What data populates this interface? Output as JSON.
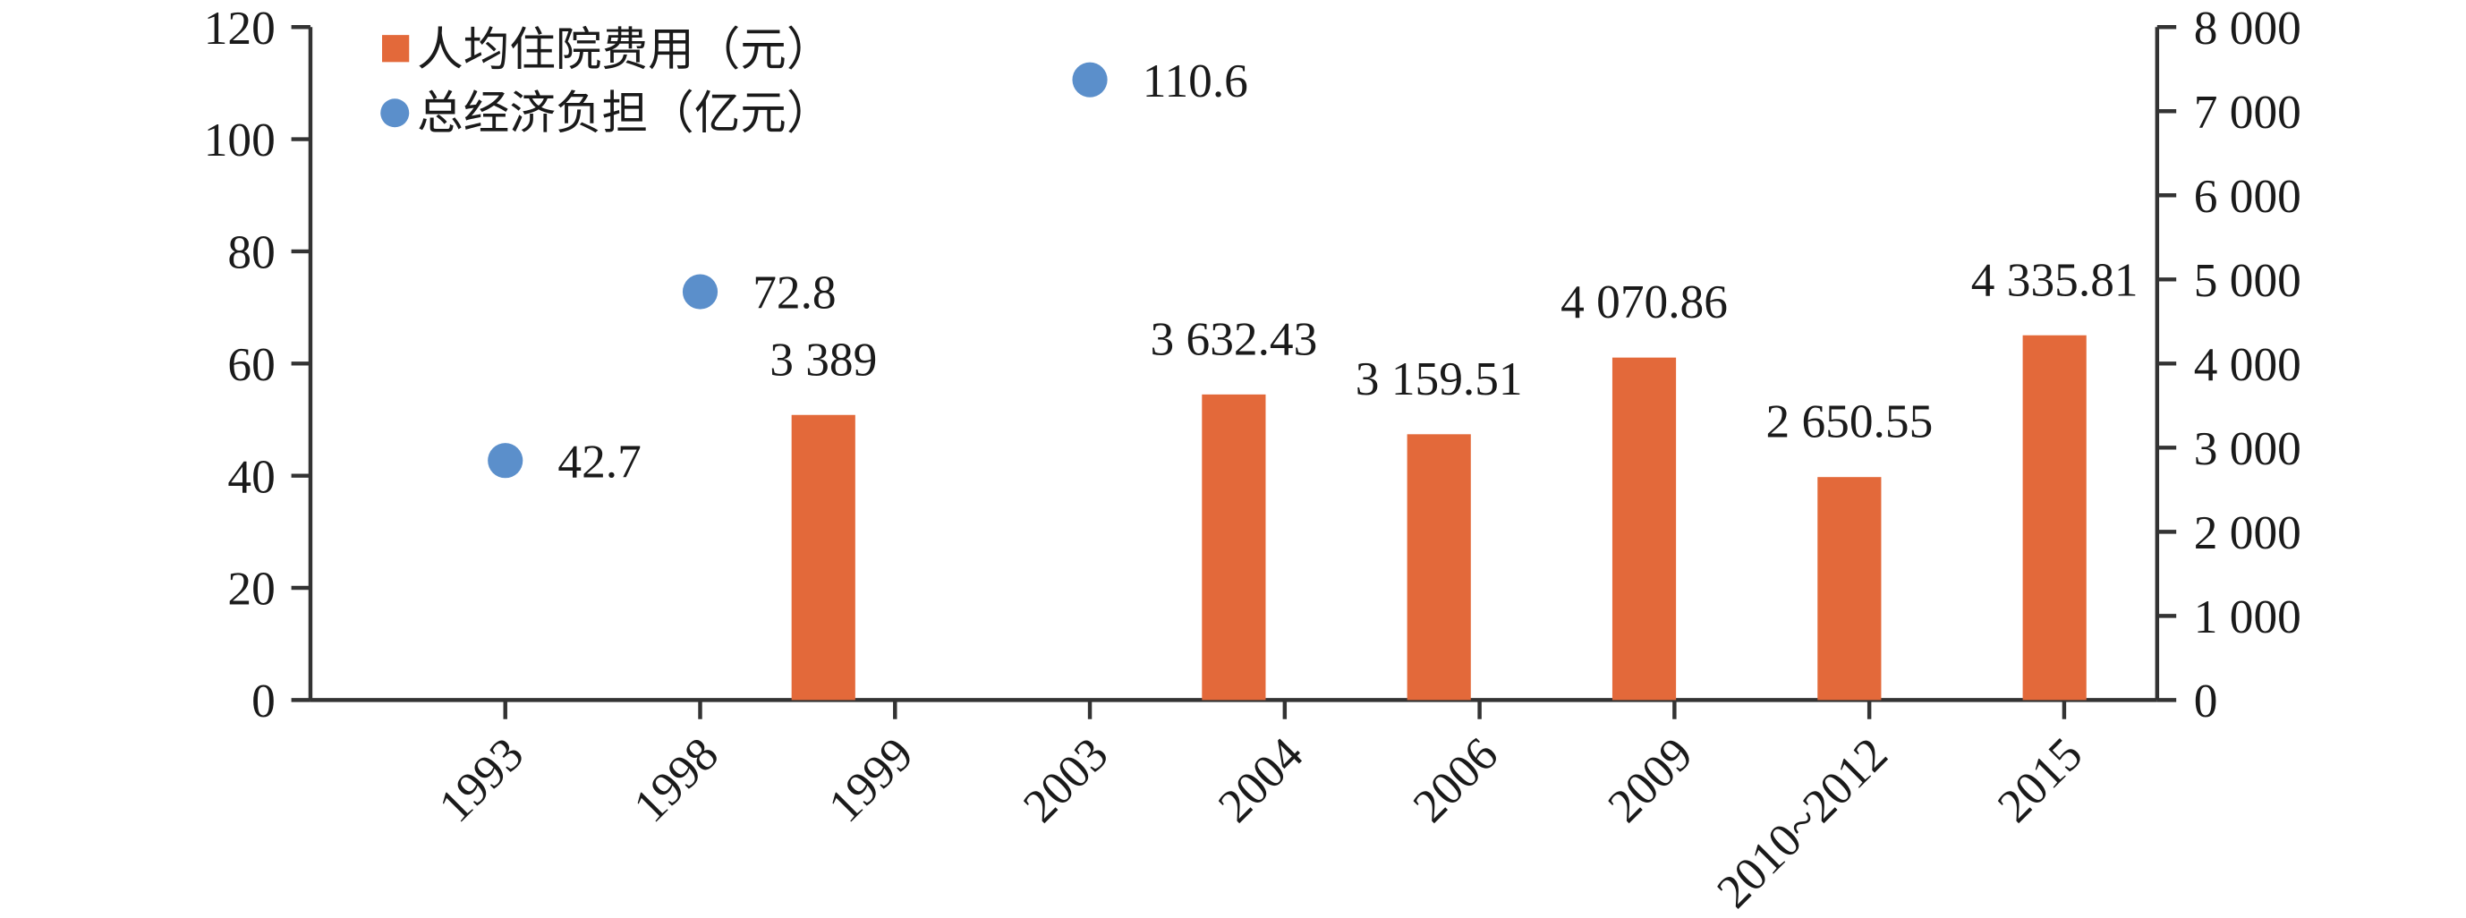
{
  "chart_data": {
    "type": "bar",
    "categories": [
      "1993",
      "1998",
      "1999",
      "2003",
      "2004",
      "2006",
      "2009",
      "2010~2012",
      "2015"
    ],
    "series": [
      {
        "name": "人均住院费用（元）",
        "kind": "bar",
        "axis": "right",
        "color": "#E3693A",
        "values": [
          null,
          null,
          3389,
          null,
          3632.43,
          3159.51,
          4070.86,
          2650.55,
          4335.81
        ],
        "labels": [
          null,
          null,
          "3 389",
          null,
          "3 632.43",
          "3 159.51",
          "4 070.86",
          "2 650.55",
          "4 335.81"
        ]
      },
      {
        "name": "总经济负担（亿元）",
        "kind": "scatter",
        "axis": "left",
        "color": "#5B8FCB",
        "values": [
          42.7,
          72.8,
          null,
          110.6,
          null,
          null,
          null,
          null,
          null
        ],
        "labels": [
          "42.7",
          "72.8",
          null,
          "110.6",
          null,
          null,
          null,
          null,
          null
        ]
      }
    ],
    "y_left": {
      "lim": [
        0,
        120
      ],
      "ticks": [
        0,
        20,
        40,
        60,
        80,
        100,
        120
      ],
      "tick_labels": [
        "0",
        "20",
        "40",
        "60",
        "80",
        "100",
        "120"
      ]
    },
    "y_right": {
      "lim": [
        0,
        8000
      ],
      "ticks": [
        0,
        1000,
        2000,
        3000,
        4000,
        5000,
        6000,
        7000,
        8000
      ],
      "tick_labels": [
        "0",
        "1 000",
        "2 000",
        "3 000",
        "4 000",
        "5 000",
        "6 000",
        "7 000",
        "8 000"
      ]
    },
    "legend": "top-left",
    "grid": false
  }
}
